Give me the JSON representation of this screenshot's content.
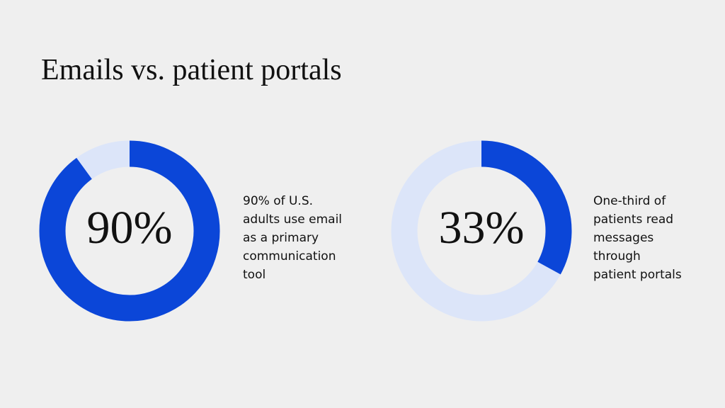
{
  "title": "Emails vs. patient portals",
  "chart_data": [
    {
      "type": "donut",
      "values": [
        90
      ],
      "value_labels": [
        "90%"
      ],
      "color": "#0b46d8",
      "track_color": "#dce5f9",
      "description": [
        "90% of U.S.",
        "adults use email",
        "as a primary",
        "communication",
        "tool"
      ]
    },
    {
      "type": "donut",
      "values": [
        33
      ],
      "value_labels": [
        "33%"
      ],
      "color": "#0b46d8",
      "track_color": "#dce5f9",
      "description": [
        "One-third of",
        "patients read",
        "messages",
        "through",
        "patient portals"
      ]
    }
  ]
}
